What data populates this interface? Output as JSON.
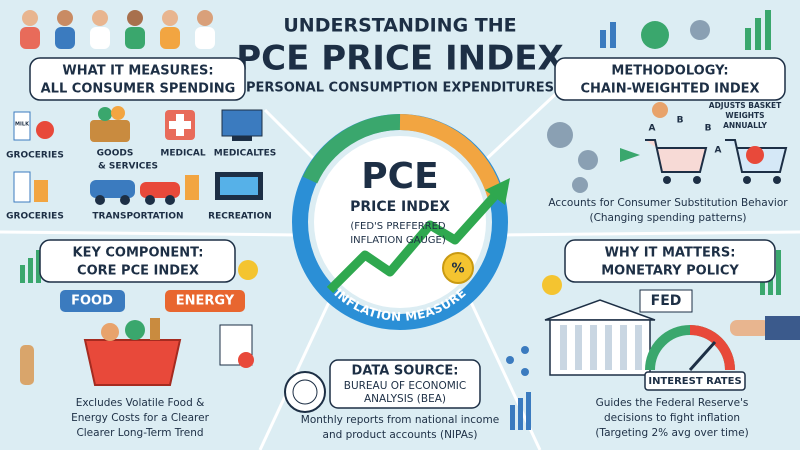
{
  "header": {
    "title_line1": "UNDERSTANDING THE",
    "title_line2": "PCE PRICE INDEX",
    "subtitle": "(PERSONAL CONSUMPTION EXPENDITURES)"
  },
  "center": {
    "title": "PCE",
    "subtitle": "PRICE INDEX",
    "note_line1": "(FED'S PREFERRED",
    "note_line2": "INFLATION GAUGE)",
    "ring_label": "INFLATION MEASURE",
    "badge": "%"
  },
  "panels": {
    "what_it_measures": {
      "heading": "WHAT IT MEASURES:",
      "subheading": "ALL CONSUMER SPENDING",
      "carton_label": "MILK",
      "labels": [
        "GROCERIES",
        "GOODS",
        "& SERVICES",
        "MEDICAL",
        "MEDICALTES",
        "GROCERIES",
        "TRANSPORTATION",
        "RECREATION"
      ]
    },
    "methodology": {
      "heading": "METHODOLOGY:",
      "subheading": "CHAIN-WEIGHTED INDEX",
      "callout": [
        "ADJUSTS BASKET",
        "WEIGHTS",
        "ANNUALLY"
      ],
      "markers": [
        "A",
        "B",
        "A",
        "B"
      ],
      "caption": "Accounts for Consumer Substitution Behavior",
      "note": "(Changing spending patterns)"
    },
    "key_component": {
      "heading": "KEY COMPONENT:",
      "subheading": "CORE PCE INDEX",
      "tags": [
        "FOOD",
        "ENERGY"
      ],
      "caption": [
        "Excludes Volatile Food &",
        "Energy Costs for a Clearer",
        "Clearer Long-Term Trend"
      ]
    },
    "why_it_matters": {
      "heading": "WHY IT MATTERS:",
      "subheading": "MONETARY POLICY",
      "sign": "FED",
      "gauge_label": "INTEREST RATES",
      "caption": [
        "Guides the Federal Reserve's",
        "decisions to fight inflation",
        "(Targeting 2% avg over time)"
      ]
    },
    "data_source": {
      "heading": "DATA SOURCE:",
      "subheading": [
        "BUREAU OF ECONOMIC",
        "ANALYSIS (BEA)"
      ],
      "caption": [
        "Monthly reports from national income",
        "and product accounts (NIPAs)"
      ]
    }
  }
}
